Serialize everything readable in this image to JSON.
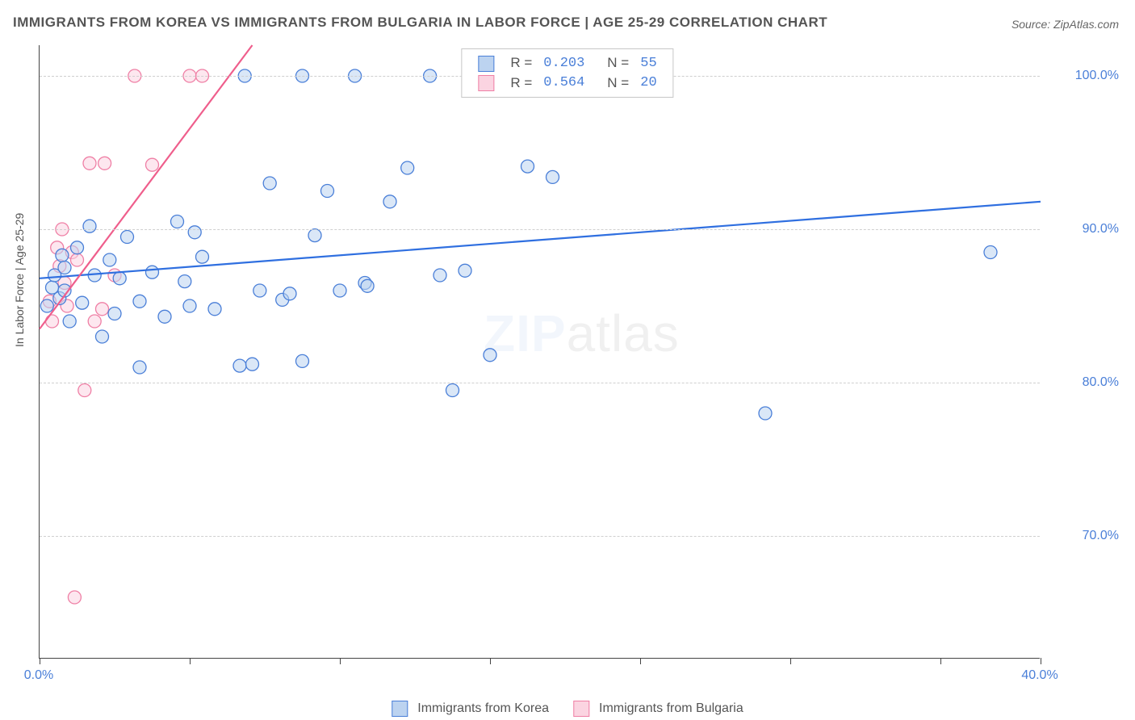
{
  "title": "IMMIGRANTS FROM KOREA VS IMMIGRANTS FROM BULGARIA IN LABOR FORCE | AGE 25-29 CORRELATION CHART",
  "source": "Source: ZipAtlas.com",
  "y_axis_label": "In Labor Force | Age 25-29",
  "watermark_a": "ZIP",
  "watermark_b": "atlas",
  "plot": {
    "x_min": 0.0,
    "x_max": 40.0,
    "y_min": 62.0,
    "y_max": 102.0,
    "y_gridlines": [
      70.0,
      80.0,
      90.0,
      100.0
    ],
    "y_tick_labels": [
      "70.0%",
      "80.0%",
      "90.0%",
      "100.0%"
    ],
    "x_ticks": [
      0.0,
      6.0,
      12.0,
      18.0,
      24.0,
      30.0,
      36.0,
      40.0
    ],
    "x_tick_labels_shown": {
      "0.0": "0.0%",
      "40.0": "40.0%"
    },
    "background_color": "#ffffff",
    "grid_color": "#cfcfcf",
    "axis_color": "#444444"
  },
  "series_a": {
    "name": "Immigrants from Korea",
    "fill": "#bcd3f0",
    "stroke": "#4a7fd8",
    "line_color": "#2f6fe0",
    "marker_radius": 8,
    "fill_opacity": 0.55,
    "R": "0.203",
    "N": "55",
    "trend": {
      "x1": 0.0,
      "y1": 86.8,
      "x2": 40.0,
      "y2": 91.8
    },
    "points": [
      [
        0.3,
        85.0
      ],
      [
        0.5,
        86.2
      ],
      [
        0.6,
        87.0
      ],
      [
        0.8,
        85.5
      ],
      [
        0.9,
        88.3
      ],
      [
        1.0,
        86.0
      ],
      [
        1.2,
        84.0
      ],
      [
        1.5,
        88.8
      ],
      [
        1.7,
        85.2
      ],
      [
        2.0,
        90.2
      ],
      [
        2.2,
        87.0
      ],
      [
        2.5,
        83.0
      ],
      [
        3.0,
        84.5
      ],
      [
        3.2,
        86.8
      ],
      [
        3.5,
        89.5
      ],
      [
        4.0,
        81.0
      ],
      [
        4.0,
        85.3
      ],
      [
        4.5,
        87.2
      ],
      [
        5.0,
        84.3
      ],
      [
        5.5,
        90.5
      ],
      [
        5.8,
        86.6
      ],
      [
        6.0,
        85.0
      ],
      [
        6.5,
        88.2
      ],
      [
        7.0,
        84.8
      ],
      [
        8.0,
        81.1
      ],
      [
        8.2,
        100.0
      ],
      [
        8.5,
        81.2
      ],
      [
        8.8,
        86.0
      ],
      [
        9.2,
        93.0
      ],
      [
        9.7,
        85.4
      ],
      [
        10.0,
        85.8
      ],
      [
        10.5,
        100.0
      ],
      [
        10.5,
        81.4
      ],
      [
        11.0,
        89.6
      ],
      [
        11.5,
        92.5
      ],
      [
        12.6,
        100.0
      ],
      [
        13.0,
        86.5
      ],
      [
        13.1,
        86.3
      ],
      [
        14.0,
        91.8
      ],
      [
        14.7,
        94.0
      ],
      [
        15.6,
        100.0
      ],
      [
        16.0,
        87.0
      ],
      [
        16.5,
        79.5
      ],
      [
        17.0,
        87.3
      ],
      [
        18.0,
        81.8
      ],
      [
        19.5,
        94.1
      ],
      [
        20.5,
        93.4
      ],
      [
        22.5,
        100.0
      ],
      [
        24.8,
        100.0
      ],
      [
        29.0,
        78.0
      ],
      [
        38.0,
        88.5
      ],
      [
        1.0,
        87.5
      ],
      [
        2.8,
        88.0
      ],
      [
        6.2,
        89.8
      ],
      [
        12.0,
        86.0
      ]
    ]
  },
  "series_b": {
    "name": "Immigrants from Bulgaria",
    "fill": "#fbd4e1",
    "stroke": "#ef7fa5",
    "line_color": "#ef5e8c",
    "marker_radius": 8,
    "fill_opacity": 0.55,
    "R": "0.564",
    "N": "20",
    "trend": {
      "x1": 0.0,
      "y1": 83.5,
      "x2": 8.5,
      "y2": 102.0
    },
    "points": [
      [
        0.4,
        85.3
      ],
      [
        0.5,
        84.0
      ],
      [
        0.7,
        88.8
      ],
      [
        0.8,
        87.6
      ],
      [
        0.9,
        90.0
      ],
      [
        1.0,
        86.5
      ],
      [
        1.1,
        85.0
      ],
      [
        1.3,
        88.5
      ],
      [
        1.4,
        66.0
      ],
      [
        1.5,
        88.0
      ],
      [
        1.8,
        79.5
      ],
      [
        2.0,
        94.3
      ],
      [
        2.2,
        84.0
      ],
      [
        2.5,
        84.8
      ],
      [
        2.6,
        94.3
      ],
      [
        3.0,
        87.0
      ],
      [
        3.8,
        100.0
      ],
      [
        4.5,
        94.2
      ],
      [
        6.0,
        100.0
      ],
      [
        6.5,
        100.0
      ]
    ]
  },
  "legend_top": {
    "r_label": "R =",
    "n_label": "N ="
  },
  "legend_bottom": {
    "a_label": "Immigrants from Korea",
    "b_label": "Immigrants from Bulgaria"
  }
}
